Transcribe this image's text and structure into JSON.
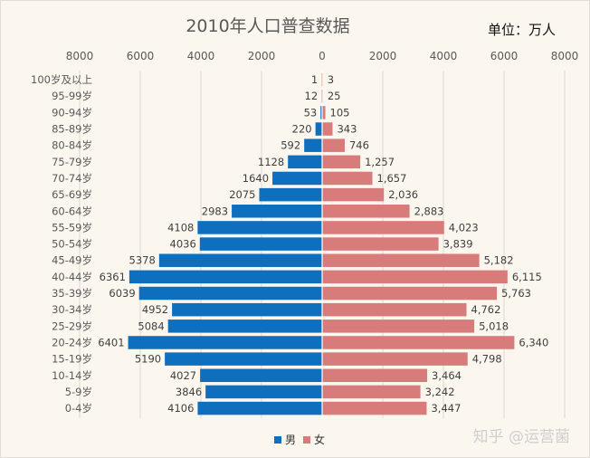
{
  "chart_data": {
    "type": "bar",
    "subtype": "population-pyramid",
    "title": "2010年人口普查数据",
    "unit_label": "单位：万人",
    "xlim": [
      -8000,
      8000
    ],
    "x_ticks": [
      -8000,
      -6000,
      -4000,
      -2000,
      0,
      2000,
      4000,
      6000,
      8000
    ],
    "x_tick_labels": [
      "8000",
      "6000",
      "4000",
      "2000",
      "0",
      "2000",
      "4000",
      "6000",
      "8000"
    ],
    "grid": true,
    "legend_position": "bottom",
    "categories": [
      "100岁及以上",
      "95-99岁",
      "90-94岁",
      "85-89岁",
      "80-84岁",
      "75-79岁",
      "70-74岁",
      "65-69岁",
      "60-64岁",
      "55-59岁",
      "50-54岁",
      "45-49岁",
      "40-44岁",
      "35-39岁",
      "30-34岁",
      "25-29岁",
      "20-24岁",
      "15-19岁",
      "10-14岁",
      "5-9岁",
      "0-4岁"
    ],
    "series": [
      {
        "name": "男",
        "color": "#0f6fbf",
        "side": "left",
        "values": [
          1,
          12,
          53,
          220,
          592,
          1128,
          1640,
          2075,
          2983,
          4108,
          4036,
          5378,
          6361,
          6039,
          4952,
          5084,
          6401,
          5190,
          4027,
          3846,
          4106
        ],
        "labels": [
          "1",
          "12",
          "53",
          "220",
          "592",
          "1128",
          "1640",
          "2075",
          "2983",
          "4108",
          "4036",
          "5378",
          "6361",
          "6039",
          "4952",
          "5084",
          "6401",
          "5190",
          "4027",
          "3846",
          "4106"
        ]
      },
      {
        "name": "女",
        "color": "#d77b7b",
        "side": "right",
        "values": [
          3,
          25,
          105,
          343,
          746,
          1257,
          1657,
          2036,
          2883,
          4023,
          3839,
          5182,
          6115,
          5763,
          4762,
          5018,
          6340,
          4798,
          3464,
          3242,
          3447
        ],
        "labels": [
          "3",
          "25",
          "105",
          "343",
          "746",
          "1,257",
          "1,657",
          "2,036",
          "2,883",
          "4,023",
          "3,839",
          "5,182",
          "6,115",
          "5,763",
          "4,762",
          "5,018",
          "6,340",
          "4,798",
          "3,464",
          "3,242",
          "3,447"
        ]
      }
    ]
  },
  "watermark": "知乎 @运营菌"
}
